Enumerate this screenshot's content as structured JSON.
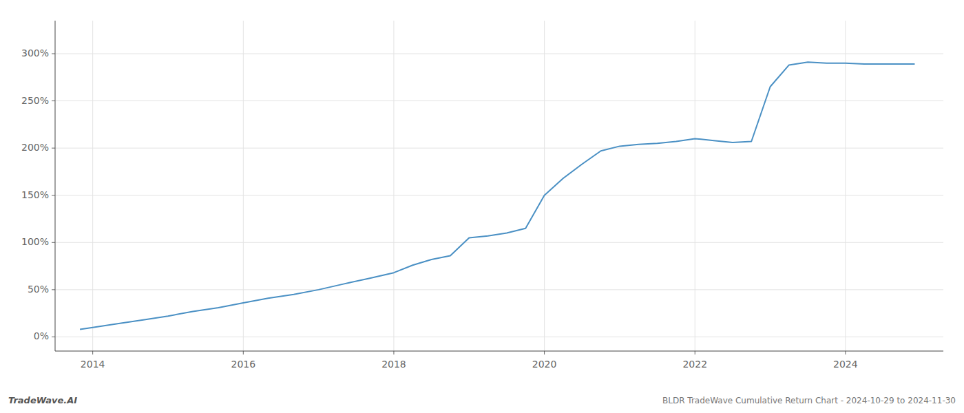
{
  "chart_data": {
    "type": "line",
    "title": "BLDR TradeWave Cumulative Return Chart - 2024-10-29 to 2024-11-30",
    "annotations": [
      "TradeWave.AI"
    ],
    "color": "#4a90c4",
    "x": [
      2013.83,
      2014.0,
      2014.33,
      2014.67,
      2015.0,
      2015.33,
      2015.67,
      2016.0,
      2016.33,
      2016.67,
      2017.0,
      2017.33,
      2017.67,
      2018.0,
      2018.25,
      2018.5,
      2018.75,
      2019.0,
      2019.25,
      2019.5,
      2019.75,
      2020.0,
      2020.25,
      2020.5,
      2020.75,
      2021.0,
      2021.25,
      2021.5,
      2021.75,
      2022.0,
      2022.25,
      2022.5,
      2022.75,
      2023.0,
      2023.25,
      2023.5,
      2023.75,
      2024.0,
      2024.25,
      2024.5,
      2024.75,
      2024.92
    ],
    "values": [
      8.0,
      10.0,
      14.0,
      18.0,
      22.0,
      27.0,
      31.0,
      36.0,
      41.0,
      45.0,
      50.0,
      56.0,
      62.0,
      68.0,
      76.0,
      82.0,
      86.0,
      105.0,
      107.0,
      110.0,
      115.0,
      150.0,
      168.0,
      183.0,
      197.0,
      202.0,
      204.0,
      205.0,
      207.0,
      210.0,
      208.0,
      206.0,
      207.0,
      265.0,
      288.0,
      291.0,
      290.0,
      290.0,
      289.0,
      289.0,
      289.0,
      289.0
    ],
    "xlim": [
      2013.5,
      2025.3
    ],
    "ylim": [
      -15,
      335
    ],
    "xticks": [
      2014,
      2016,
      2018,
      2020,
      2022,
      2024
    ],
    "yticks": [
      {
        "value": 0,
        "label": "0%"
      },
      {
        "value": 50,
        "label": "50%"
      },
      {
        "value": 100,
        "label": "100%"
      },
      {
        "value": 150,
        "label": "150%"
      },
      {
        "value": 200,
        "label": "200%"
      },
      {
        "value": 250,
        "label": "250%"
      },
      {
        "value": 300,
        "label": "300%"
      }
    ],
    "grid": true
  }
}
